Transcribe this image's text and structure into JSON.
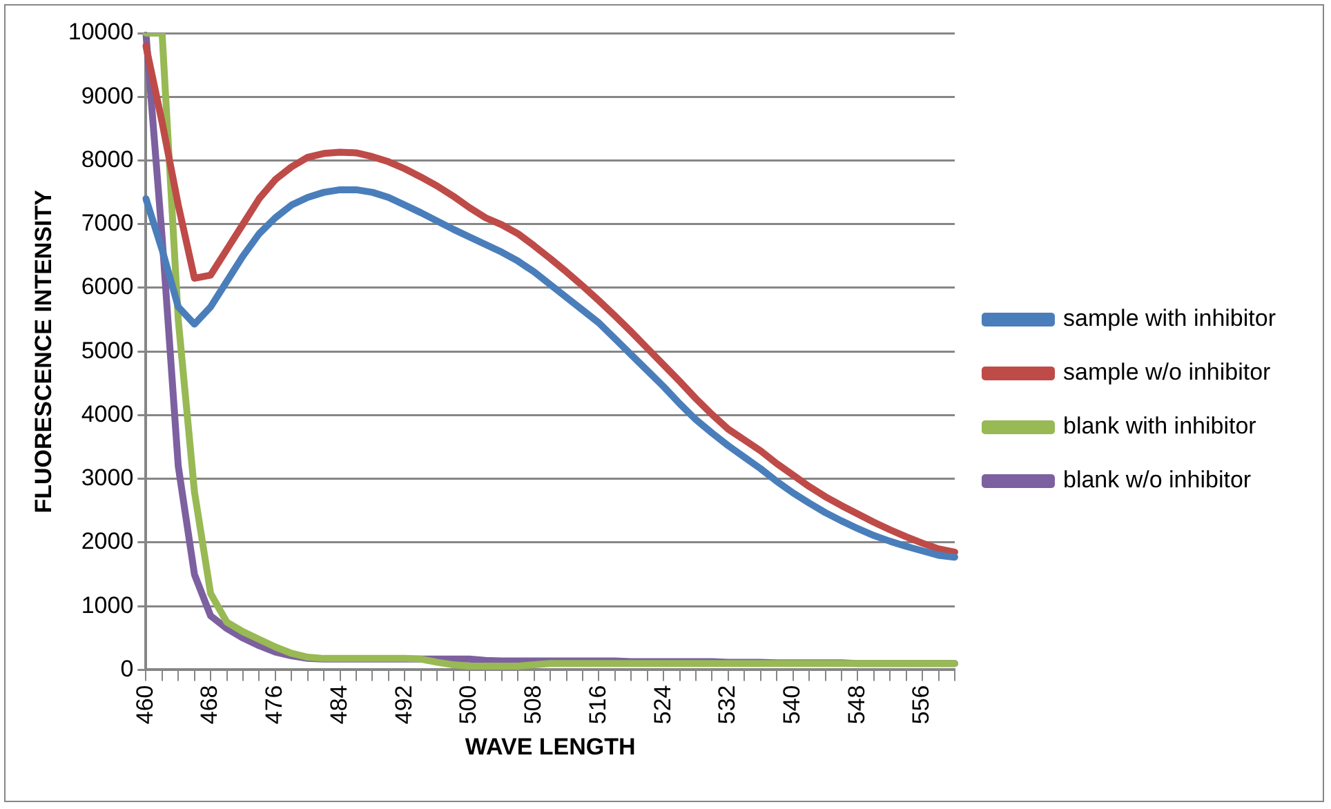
{
  "chart_data": {
    "type": "line",
    "xlabel": "WAVE LENGTH",
    "ylabel": "FLUORESCENCE INTENSITY",
    "categories": [
      "460",
      null,
      null,
      null,
      "468",
      null,
      null,
      null,
      "476",
      null,
      null,
      null,
      "484",
      null,
      null,
      null,
      "492",
      null,
      null,
      null,
      "500",
      null,
      null,
      null,
      "508",
      null,
      null,
      null,
      "516",
      null,
      null,
      null,
      "524",
      null,
      null,
      null,
      "532",
      null,
      null,
      null,
      "540",
      null,
      null,
      null,
      "548",
      null,
      null,
      null,
      "556",
      null,
      null
    ],
    "ylim": [
      0,
      10000
    ],
    "yticks": [
      0,
      1000,
      2000,
      3000,
      4000,
      5000,
      6000,
      7000,
      8000,
      9000,
      10000
    ],
    "grid": "y",
    "legend": "right",
    "marker": "none",
    "line_style": "solid",
    "series": [
      {
        "name": "sample with inhibitor",
        "color": "#4a7ebb",
        "values": [
          7400,
          6600,
          5700,
          5430,
          5700,
          6100,
          6500,
          6850,
          7100,
          7300,
          7420,
          7500,
          7540,
          7540,
          7500,
          7420,
          7300,
          7180,
          7050,
          6920,
          6800,
          6680,
          6560,
          6420,
          6250,
          6050,
          5850,
          5650,
          5450,
          5200,
          4950,
          4700,
          4450,
          4180,
          3930,
          3720,
          3520,
          3340,
          3160,
          2960,
          2780,
          2620,
          2470,
          2340,
          2220,
          2110,
          2020,
          1940,
          1870,
          1800,
          1770
        ]
      },
      {
        "name": "sample w/o inhibitor",
        "color": "#be4b48",
        "values": [
          9800,
          8600,
          7300,
          6150,
          6200,
          6600,
          7000,
          7400,
          7700,
          7900,
          8050,
          8110,
          8130,
          8120,
          8060,
          7980,
          7870,
          7740,
          7600,
          7440,
          7260,
          7100,
          6990,
          6850,
          6660,
          6460,
          6250,
          6030,
          5800,
          5560,
          5310,
          5050,
          4790,
          4530,
          4260,
          4010,
          3780,
          3610,
          3440,
          3240,
          3060,
          2880,
          2720,
          2580,
          2450,
          2320,
          2200,
          2090,
          1990,
          1900,
          1850
        ]
      },
      {
        "name": "blank with inhibitor",
        "color": "#98b954",
        "values": [
          10000,
          10000,
          5500,
          2800,
          1200,
          750,
          600,
          480,
          360,
          260,
          200,
          180,
          180,
          180,
          180,
          180,
          180,
          170,
          120,
          80,
          60,
          60,
          60,
          60,
          80,
          100,
          100,
          100,
          100,
          100,
          100,
          100,
          100,
          100,
          100,
          100,
          100,
          100,
          100,
          100,
          100,
          100,
          100,
          100,
          100,
          100,
          100,
          100,
          100,
          100,
          100
        ]
      },
      {
        "name": "blank w/o inhibitor",
        "color": "#7d60a0",
        "values": [
          10000,
          6800,
          3200,
          1500,
          850,
          650,
          500,
          380,
          280,
          220,
          180,
          170,
          170,
          170,
          170,
          170,
          170,
          170,
          170,
          170,
          170,
          150,
          140,
          140,
          140,
          140,
          140,
          140,
          140,
          140,
          130,
          130,
          130,
          130,
          130,
          130,
          120,
          120,
          120,
          110,
          110,
          110,
          110,
          110,
          100,
          100,
          100,
          100,
          100,
          100,
          100
        ]
      }
    ]
  }
}
